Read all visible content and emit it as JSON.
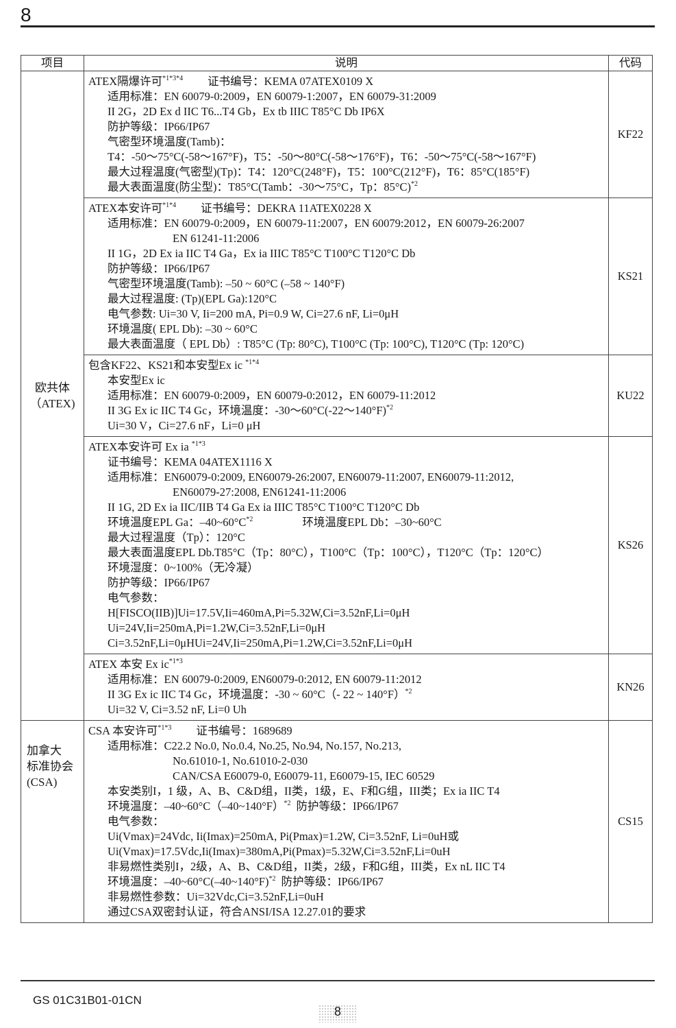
{
  "header": {
    "page_number": "8"
  },
  "table": {
    "headers": [
      "项目",
      "说明",
      "代码"
    ],
    "groups": [
      {
        "category": "欧共体\n（ATEX)",
        "rows": [
          {
            "code": "KF22",
            "lines": [
              {
                "i": 0,
                "text": "ATEX隔爆许可",
                "sup": "*1*3*4",
                "after": "证书编号：KEMA 07ATEX0109 X"
              },
              {
                "i": 1,
                "text": "适用标准：EN 60079-0:2009，EN 60079-1:2007，EN 60079-31:2009"
              },
              {
                "i": 1,
                "text": "II 2G，2D Ex d IIC T6...T4 Gb，Ex tb IIIC T85°C Db IP6X"
              },
              {
                "i": 1,
                "text": "防护等级：IP66/IP67"
              },
              {
                "i": 1,
                "text": "气密型环境温度(Tamb)："
              },
              {
                "i": 1,
                "text": "T4：-50～75°C(-58～167°F)，T5：-50～80°C(-58～176°F)，T6：-50～75°C(-58～167°F)"
              },
              {
                "i": 1,
                "text": "最大过程温度(气密型)(Tp)：T4：120°C(248°F)，T5：100°C(212°F)，T6：85°C(185°F)"
              },
              {
                "i": 1,
                "text": "最大表面温度(防尘型)：T85°C(Tamb：-30～75°C，Tp：85°C)",
                "sup": "*2"
              }
            ]
          },
          {
            "code": "KS21",
            "lines": [
              {
                "i": 0,
                "text": "ATEX本安许可",
                "sup": "*1*4",
                "after": "证书编号：DEKRA 11ATEX0228 X"
              },
              {
                "i": 1,
                "text": "适用标准：EN 60079-0:2009，EN 60079-11:2007，EN 60079:2012，EN 60079-26:2007"
              },
              {
                "i": 2,
                "text": "EN 61241-11:2006"
              },
              {
                "i": 1,
                "text": "II 1G，2D Ex ia IIC T4 Ga，Ex ia IIIC T85°C T100°C T120°C Db"
              },
              {
                "i": 1,
                "text": "防护等级：IP66/IP67"
              },
              {
                "i": 1,
                "text": "气密型环境温度(Tamb): –50 ~ 60°C (–58 ~ 140°F)"
              },
              {
                "i": 1,
                "text": "最大过程温度: (Tp)(EPL Ga):120°C"
              },
              {
                "i": 1,
                "text": "电气参数: Ui=30 V, Ii=200 mA, Pi=0.9 W, Ci=27.6 nF, Li=0μH"
              },
              {
                "i": 1,
                "text": "环境温度( EPL Db): –30 ~ 60°C"
              },
              {
                "i": 1,
                "text": "最大表面温度（ EPL Db）: T85°C (Tp: 80°C), T100°C (Tp: 100°C), T120°C (Tp: 120°C)"
              }
            ]
          },
          {
            "code": "KU22",
            "lines": [
              {
                "i": 0,
                "text": "包含KF22、KS21和本安型Ex ic ",
                "sup": "*1*4"
              },
              {
                "i": 1,
                "text": "本安型Ex ic"
              },
              {
                "i": 1,
                "text": "适用标准：EN 60079-0:2009，EN 60079-0:2012，EN 60079-11:2012"
              },
              {
                "i": 1,
                "text": "II 3G Ex ic IIC T4 Gc，环境温度：-30～60°C(-22～140°F)",
                "sup": "*2"
              },
              {
                "i": 1,
                "text": "Ui=30 V，Ci=27.6 nF，Li=0 μH"
              }
            ]
          },
          {
            "code": "KS26",
            "lines": [
              {
                "i": 0,
                "text": "ATEX本安许可 Ex ia ",
                "sup": "*1*3"
              },
              {
                "i": 1,
                "text": "证书编号：KEMA 04ATEX1116 X"
              },
              {
                "i": 1,
                "text": "适用标准：EN60079-0:2009, EN60079-26:2007, EN60079-11:2007, EN60079-11:2012,"
              },
              {
                "i": 2,
                "text": "EN60079-27:2008, EN61241-11:2006"
              },
              {
                "i": 1,
                "text": "II 1G, 2D Ex ia IIC/IIB T4 Ga Ex ia IIIC T85°C T100°C T120°C Db"
              },
              {
                "i": 1,
                "text": "环境温度EPL Ga：–40~60°C",
                "sup": "*2",
                "after": "环境温度EPL Db：–30~60°C",
                "wide": true
              },
              {
                "i": 1,
                "text": "最大过程温度（Tp）：120°C"
              },
              {
                "i": 1,
                "text": "最大表面温度EPL Db.T85°C（Tp：80°C），T100°C（Tp：100°C），T120°C（Tp：120°C）"
              },
              {
                "i": 1,
                "text": "环境湿度：0~100%（无冷凝）"
              },
              {
                "i": 1,
                "text": "防护等级：IP66/IP67"
              },
              {
                "i": 1,
                "text": "电气参数："
              },
              {
                "i": 1,
                "text": "H[FISCO(IIB)]Ui=17.5V,Ii=460mA,Pi=5.32W,Ci=3.52nF,Li=0μH"
              },
              {
                "i": 1,
                "text": "Ui=24V,Ii=250mA,Pi=1.2W,Ci=3.52nF,Li=0μH"
              },
              {
                "i": 1,
                "text": "Ci=3.52nF,Li=0μHUi=24V,Ii=250mA,Pi=1.2W,Ci=3.52nF,Li=0μH"
              }
            ]
          },
          {
            "code": "KN26",
            "lines": [
              {
                "i": 0,
                "text": "ATEX 本安 Ex ic",
                "sup": "*1*3"
              },
              {
                "i": 1,
                "text": "适用标准：EN 60079-0:2009, EN60079-0:2012, EN 60079-11:2012"
              },
              {
                "i": 1,
                "text": "II 3G Ex ic IIC T4 Gc，环境温度：-30 ~ 60°C（- 22 ~ 140°F）",
                "sup": "*2"
              },
              {
                "i": 1,
                "text": "Ui=32 V, Ci=3.52 nF, Li=0 Uh"
              }
            ]
          }
        ]
      },
      {
        "category": "加拿大\n标准协会\n(CSA)",
        "rows": [
          {
            "code": "CS15",
            "lines": [
              {
                "i": 0,
                "text": "CSA 本安许可",
                "sup": "*1*3",
                "after": "证书编号：1689689"
              },
              {
                "i": 1,
                "text": "适用标准：C22.2 No.0, No.0.4, No.25, No.94, No.157, No.213,"
              },
              {
                "i": 2,
                "text": "No.61010-1, No.61010-2-030"
              },
              {
                "i": 2,
                "text": "CAN/CSA E60079-0, E60079-11, E60079-15, IEC 60529"
              },
              {
                "i": 1,
                "text": "本安类别I，1 级，A、B、C&D组，II类，1级，E、F和G组，III类；Ex ia IIC T4"
              },
              {
                "i": 1,
                "text": "环境温度：–40~60°C（–40~140°F）",
                "sup": "*2",
                "after": "防护等级：IP66/IP67",
                "narrow": true
              },
              {
                "i": 1,
                "text": "电气参数："
              },
              {
                "i": 1,
                "text": "Ui(Vmax)=24Vdc, Ii(Imax)=250mA, Pi(Pmax)=1.2W, Ci=3.52nF, Li=0uH或"
              },
              {
                "i": 1,
                "text": "Ui(Vmax)=17.5Vdc,Ii(Imax)=380mA,Pi(Pmax)=5.32W,Ci=3.52nF,Li=0uH"
              },
              {
                "i": 1,
                "text": "非易燃性类别I，2级，A、B、C&D组，II类，2级，F和G组，III类，Ex nL IIC T4"
              },
              {
                "i": 1,
                "text": "环境温度：–40~60°C(–40~140°F)",
                "sup": "*2",
                "after": "防护等级：IP66/IP67",
                "narrow": true
              },
              {
                "i": 1,
                "text": "非易燃性参数：Ui=32Vdc,Ci=3.52nF,Li=0uH"
              },
              {
                "i": 1,
                "text": "通过CSA双密封认证，符合ANSI/ISA 12.27.01的要求"
              }
            ]
          }
        ]
      }
    ]
  },
  "footer": {
    "doc_number": "GS 01C31B01-01CN",
    "page_number": "8"
  }
}
